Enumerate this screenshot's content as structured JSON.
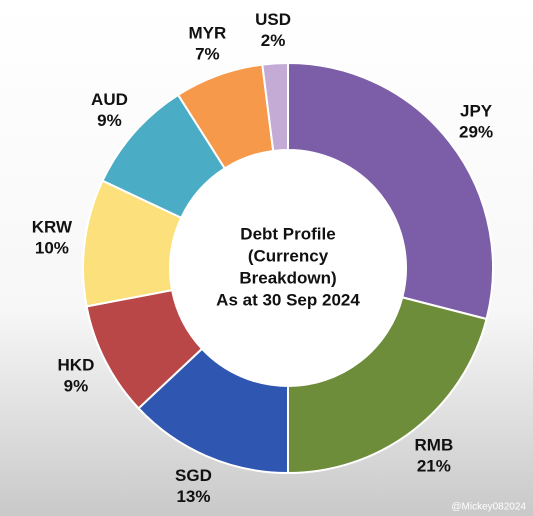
{
  "chart_data": {
    "type": "donut",
    "title_lines": [
      "Debt Profile",
      "(Currency",
      "Breakdown)",
      "As at 30 Sep 2024"
    ],
    "categories": [
      "JPY",
      "RMB",
      "SGD",
      "HKD",
      "KRW",
      "AUD",
      "MYR",
      "USD"
    ],
    "values": [
      29,
      21,
      13,
      9,
      10,
      9,
      7,
      2
    ],
    "value_labels": [
      "29%",
      "21%",
      "13%",
      "9%",
      "10%",
      "9%",
      "7%",
      "2%"
    ],
    "colors": [
      "#7b5ea7",
      "#6e8d3b",
      "#2f56b0",
      "#b94747",
      "#fbe07c",
      "#4bacc6",
      "#f6994b",
      "#c3abd6"
    ],
    "watermark": "@Mickey082024"
  }
}
